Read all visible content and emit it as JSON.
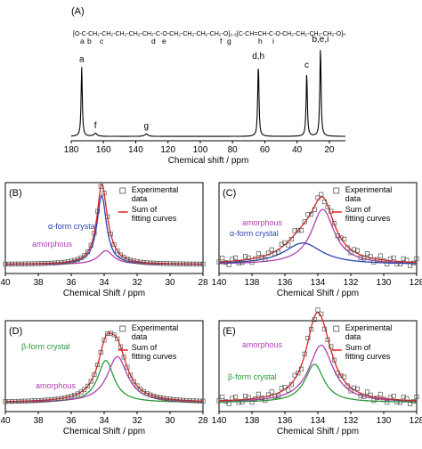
{
  "chart_data": [
    {
      "panel": "(A)",
      "type": "line",
      "xlabel": "Chemical shift / ppm",
      "xlim": [
        180,
        10
      ],
      "xticks": [
        180,
        160,
        140,
        120,
        100,
        80,
        60,
        40,
        20
      ],
      "formula": {
        "main": "[O-C-CH₂-CH₂-CH₂-CH₂-CH₂-C-O-CH₂-CH₂-CH₂-CH₂-O]₀.₆[C-CH=CH-C-O-CH₂-CH₂-CH₂-CH₂-O]ₙ",
        "labels": [
          "a",
          "b",
          "c",
          "d",
          "e",
          "f",
          "g",
          "h",
          "i"
        ]
      },
      "peaks": [
        {
          "x": 173.5,
          "height": 0.7,
          "label": "a"
        },
        {
          "x": 165.0,
          "height": 0.03,
          "label": "f"
        },
        {
          "x": 133.5,
          "height": 0.025,
          "label": "g"
        },
        {
          "x": 64.0,
          "height": 0.73,
          "label": "d,h"
        },
        {
          "x": 34.0,
          "height": 0.64,
          "label": "c"
        },
        {
          "x": 25.5,
          "height": 0.9,
          "label": "b,e,i"
        }
      ]
    },
    {
      "panel": "(B)",
      "type": "line",
      "xlabel": "Chemical Shift / ppm",
      "xlim": [
        40,
        28
      ],
      "xticks": [
        40,
        38,
        36,
        34,
        32,
        30,
        28
      ],
      "legend": [
        "Experimental data",
        "Sum of fitting curves"
      ],
      "annotations": [
        "α-form crystal",
        "amorphous"
      ],
      "series": [
        {
          "name": "α-form crystal",
          "color": "#2b45b0",
          "center": 34.15,
          "width": 0.35,
          "height": 0.9
        },
        {
          "name": "amorphous",
          "color": "#b040b0",
          "center": 33.9,
          "width": 0.55,
          "height": 0.18
        }
      ]
    },
    {
      "panel": "(C)",
      "type": "line",
      "xlabel": "Chemical Shift / ppm",
      "xlim": [
        140,
        128
      ],
      "xticks": [
        140,
        138,
        136,
        134,
        132,
        130,
        128
      ],
      "legend": [
        "Experimental data",
        "Sum of fitting curves"
      ],
      "annotations": [
        "amorphous",
        "α-form crystal"
      ],
      "series": [
        {
          "name": "amorphous",
          "color": "#b040b0",
          "center": 133.7,
          "width": 0.85,
          "height": 0.72
        },
        {
          "name": "α-form crystal",
          "color": "#2b45b0",
          "center": 134.9,
          "width": 1.4,
          "height": 0.28
        }
      ]
    },
    {
      "panel": "(D)",
      "type": "line",
      "xlabel": "Chemical Shift / ppm",
      "xlim": [
        40,
        28
      ],
      "xticks": [
        40,
        38,
        36,
        34,
        32,
        30,
        28
      ],
      "legend": [
        "Experimental data",
        "Sum of fitting curves"
      ],
      "annotations": [
        "β-form crystal",
        "amorphous"
      ],
      "series": [
        {
          "name": "β-form crystal",
          "color": "#2a9a3a",
          "center": 33.9,
          "width": 0.6,
          "height": 0.55
        },
        {
          "name": "amorphous",
          "color": "#b040b0",
          "center": 33.2,
          "width": 0.75,
          "height": 0.6
        }
      ]
    },
    {
      "panel": "(E)",
      "type": "line",
      "xlabel": "Chemical Shift / ppm",
      "xlim": [
        140,
        128
      ],
      "xticks": [
        140,
        138,
        136,
        134,
        132,
        130,
        128
      ],
      "legend": [
        "Experimental data",
        "Sum of fitting curves"
      ],
      "annotations": [
        "amorphous",
        "β-form crystal"
      ],
      "series": [
        {
          "name": "amorphous",
          "color": "#b040b0",
          "center": 133.8,
          "width": 0.9,
          "height": 0.75
        },
        {
          "name": "β-form crystal",
          "color": "#2a9a3a",
          "center": 134.2,
          "width": 0.7,
          "height": 0.5
        }
      ]
    }
  ]
}
